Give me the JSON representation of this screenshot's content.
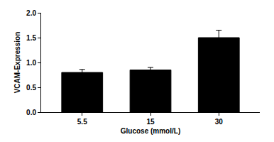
{
  "chart_data": {
    "type": "bar",
    "x_label": "Glucose (mmol/L)",
    "y_label": "VCAM-Expression",
    "categories": [
      "5.5",
      "15",
      "30"
    ],
    "values": [
      0.8,
      0.85,
      1.5
    ],
    "errors": [
      0.06,
      0.05,
      0.15
    ],
    "color": "#000000",
    "ylim": [
      0,
      2
    ],
    "yticks": [
      {
        "value": 0,
        "label": "0.0"
      },
      0.5,
      {
        "value": 1,
        "label": "1.0"
      },
      1.5,
      {
        "value": 2,
        "label": "2.0"
      }
    ],
    "grid": false
  }
}
